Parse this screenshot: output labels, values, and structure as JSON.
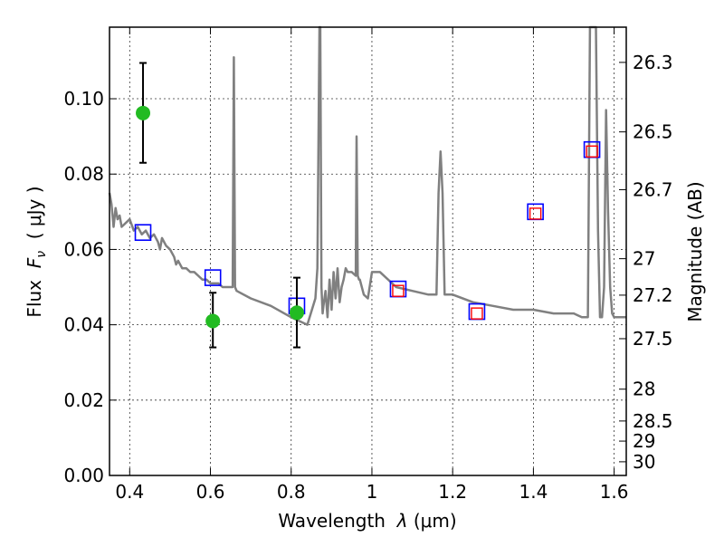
{
  "chart_data": {
    "type": "line",
    "title": "",
    "xlabel": "Wavelength  λ (μm)",
    "ylabel": "Flux  F_ν  ( μJy )",
    "ylabel_parts": {
      "prefix": "Flux  ",
      "symbol": "F",
      "sub": "ν",
      "suffix": "  ( μJy )"
    },
    "xlabel_parts": {
      "prefix": "Wavelength  ",
      "symbol": "λ",
      "suffix": " (μm)"
    },
    "y2label": "Magnitude (AB)",
    "xlim": [
      0.35,
      1.63
    ],
    "ylim": [
      0.0,
      0.119
    ],
    "grid": true,
    "xticks": [
      {
        "value": 0.4,
        "label": "0.4"
      },
      {
        "value": 0.6,
        "label": "0.6"
      },
      {
        "value": 0.8,
        "label": "0.8"
      },
      {
        "value": 1.0,
        "label": "1"
      },
      {
        "value": 1.2,
        "label": "1.2"
      },
      {
        "value": 1.4,
        "label": "1.4"
      },
      {
        "value": 1.6,
        "label": "1.6"
      }
    ],
    "yticks": [
      {
        "value": 0.0,
        "label": "0.00"
      },
      {
        "value": 0.02,
        "label": "0.02"
      },
      {
        "value": 0.04,
        "label": "0.04"
      },
      {
        "value": 0.06,
        "label": "0.06"
      },
      {
        "value": 0.08,
        "label": "0.08"
      },
      {
        "value": 0.1,
        "label": "0.10"
      }
    ],
    "y2ticks": [
      {
        "mag": 26.3,
        "label": "26.3"
      },
      {
        "mag": 26.5,
        "label": "26.5"
      },
      {
        "mag": 26.7,
        "label": "26.7"
      },
      {
        "mag": 27.0,
        "label": "27"
      },
      {
        "mag": 27.2,
        "label": "27.2"
      },
      {
        "mag": 27.5,
        "label": "27.5"
      },
      {
        "mag": 28.0,
        "label": "28"
      },
      {
        "mag": 28.5,
        "label": "28.5"
      },
      {
        "mag": 29.0,
        "label": "29"
      },
      {
        "mag": 30.0,
        "label": "30"
      }
    ],
    "series": [
      {
        "kind": "model-spectrum",
        "color": "#808080",
        "x": [
          0.35,
          0.355,
          0.36,
          0.365,
          0.37,
          0.375,
          0.38,
          0.39,
          0.4,
          0.41,
          0.42,
          0.43,
          0.44,
          0.45,
          0.46,
          0.47,
          0.475,
          0.48,
          0.49,
          0.5,
          0.51,
          0.515,
          0.52,
          0.53,
          0.54,
          0.55,
          0.56,
          0.57,
          0.58,
          0.59,
          0.6,
          0.61,
          0.62,
          0.63,
          0.64,
          0.65,
          0.655,
          0.658,
          0.661,
          0.665,
          0.7,
          0.75,
          0.8,
          0.84,
          0.86,
          0.865,
          0.87,
          0.872,
          0.875,
          0.878,
          0.88,
          0.885,
          0.89,
          0.895,
          0.9,
          0.905,
          0.91,
          0.915,
          0.92,
          0.925,
          0.93,
          0.935,
          0.94,
          0.95,
          0.96,
          0.962,
          0.965,
          0.968,
          0.97,
          0.98,
          0.99,
          1.0,
          1.02,
          1.04,
          1.06,
          1.1,
          1.14,
          1.16,
          1.165,
          1.17,
          1.175,
          1.18,
          1.2,
          1.25,
          1.3,
          1.35,
          1.4,
          1.45,
          1.5,
          1.52,
          1.53,
          1.535,
          1.54,
          1.55,
          1.555,
          1.56,
          1.565,
          1.57,
          1.575,
          1.58,
          1.585,
          1.59,
          1.595,
          1.6,
          1.605,
          1.61,
          1.63
        ],
        "y": [
          0.075,
          0.072,
          0.066,
          0.071,
          0.068,
          0.069,
          0.066,
          0.067,
          0.068,
          0.065,
          0.066,
          0.064,
          0.065,
          0.063,
          0.064,
          0.062,
          0.06,
          0.063,
          0.061,
          0.06,
          0.058,
          0.056,
          0.057,
          0.055,
          0.055,
          0.054,
          0.054,
          0.053,
          0.052,
          0.052,
          0.051,
          0.051,
          0.051,
          0.05,
          0.05,
          0.05,
          0.05,
          0.111,
          0.05,
          0.049,
          0.047,
          0.045,
          0.042,
          0.04,
          0.047,
          0.055,
          0.119,
          0.119,
          0.05,
          0.043,
          0.045,
          0.049,
          0.042,
          0.052,
          0.044,
          0.054,
          0.047,
          0.055,
          0.046,
          0.05,
          0.052,
          0.055,
          0.054,
          0.054,
          0.053,
          0.09,
          0.053,
          0.052,
          0.052,
          0.048,
          0.047,
          0.054,
          0.054,
          0.052,
          0.05,
          0.049,
          0.048,
          0.048,
          0.075,
          0.086,
          0.075,
          0.048,
          0.048,
          0.046,
          0.045,
          0.044,
          0.044,
          0.043,
          0.043,
          0.042,
          0.042,
          0.042,
          0.119,
          0.119,
          0.119,
          0.065,
          0.042,
          0.042,
          0.05,
          0.097,
          0.07,
          0.05,
          0.043,
          0.042,
          0.042,
          0.042,
          0.042
        ]
      },
      {
        "kind": "model-photometry",
        "marker": "square",
        "color": "#0000ff",
        "points": [
          {
            "x": 0.433,
            "y": 0.0645
          },
          {
            "x": 0.606,
            "y": 0.0525
          },
          {
            "x": 0.814,
            "y": 0.045
          },
          {
            "x": 1.065,
            "y": 0.0495
          },
          {
            "x": 1.26,
            "y": 0.0435
          },
          {
            "x": 1.405,
            "y": 0.07
          },
          {
            "x": 1.545,
            "y": 0.0865
          }
        ]
      },
      {
        "kind": "observed-photometry",
        "marker": "square",
        "color": "#ff0000",
        "points": [
          {
            "x": 1.065,
            "y": 0.049
          },
          {
            "x": 1.26,
            "y": 0.043
          },
          {
            "x": 1.405,
            "y": 0.0695
          },
          {
            "x": 1.545,
            "y": 0.086
          }
        ]
      },
      {
        "kind": "observed-detections",
        "marker": "circle",
        "color": "#22bb22",
        "errorbar_color": "#000000",
        "points": [
          {
            "x": 0.433,
            "y": 0.0962,
            "yerr_low": 0.083,
            "yerr_high": 0.1095
          },
          {
            "x": 0.606,
            "y": 0.041,
            "yerr_low": 0.034,
            "yerr_high": 0.0485
          },
          {
            "x": 0.814,
            "y": 0.0432,
            "yerr_low": 0.034,
            "yerr_high": 0.0525
          }
        ]
      }
    ]
  }
}
